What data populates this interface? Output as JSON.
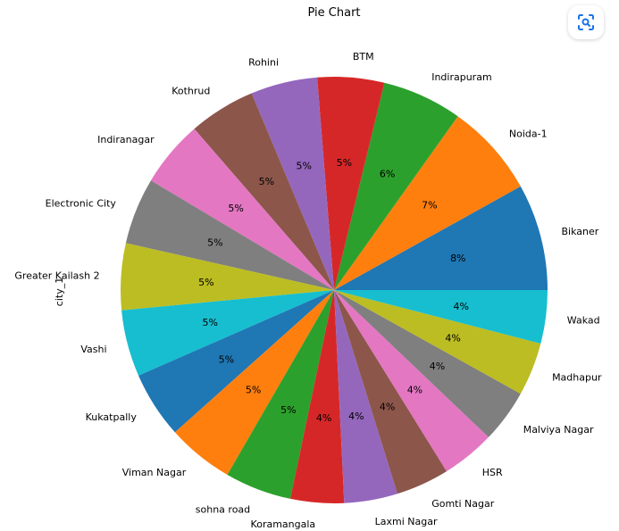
{
  "chart_data": {
    "type": "pie",
    "title": "Pie Chart",
    "ylabel": "city_1",
    "start_angle_deg": 0,
    "direction": "counterclockwise",
    "slices": [
      {
        "label": "Bikaner",
        "value": 8,
        "pct_label": "8%",
        "color": "#1f77b4"
      },
      {
        "label": "Noida-1",
        "value": 7,
        "pct_label": "7%",
        "color": "#ff7f0e"
      },
      {
        "label": "Indirapuram",
        "value": 6,
        "pct_label": "6%",
        "color": "#2ca02c"
      },
      {
        "label": "BTM",
        "value": 5,
        "pct_label": "5%",
        "color": "#d62728"
      },
      {
        "label": "Rohini",
        "value": 5,
        "pct_label": "5%",
        "color": "#9467bd"
      },
      {
        "label": "Kothrud",
        "value": 5,
        "pct_label": "5%",
        "color": "#8c564b"
      },
      {
        "label": "Indiranagar",
        "value": 5,
        "pct_label": "5%",
        "color": "#e377c2"
      },
      {
        "label": "Electronic City",
        "value": 5,
        "pct_label": "5%",
        "color": "#7f7f7f"
      },
      {
        "label": "Greater Kailash 2",
        "value": 5,
        "pct_label": "5%",
        "color": "#bcbd22"
      },
      {
        "label": "Vashi",
        "value": 5,
        "pct_label": "5%",
        "color": "#17becf"
      },
      {
        "label": "Kukatpally",
        "value": 5,
        "pct_label": "5%",
        "color": "#1f77b4"
      },
      {
        "label": "Viman Nagar",
        "value": 5,
        "pct_label": "5%",
        "color": "#ff7f0e"
      },
      {
        "label": "sohna road",
        "value": 5,
        "pct_label": "5%",
        "color": "#2ca02c"
      },
      {
        "label": "Koramangala",
        "value": 4,
        "pct_label": "4%",
        "color": "#d62728"
      },
      {
        "label": "Laxmi Nagar",
        "value": 4,
        "pct_label": "4%",
        "color": "#9467bd"
      },
      {
        "label": "Gomti Nagar",
        "value": 4,
        "pct_label": "4%",
        "color": "#8c564b"
      },
      {
        "label": "HSR",
        "value": 4,
        "pct_label": "4%",
        "color": "#e377c2"
      },
      {
        "label": "Malviya Nagar",
        "value": 4,
        "pct_label": "4%",
        "color": "#7f7f7f"
      },
      {
        "label": "Madhapur",
        "value": 4,
        "pct_label": "4%",
        "color": "#bcbd22"
      },
      {
        "label": "Wakad",
        "value": 4,
        "pct_label": "4%",
        "color": "#17becf"
      }
    ]
  },
  "toolbar": {
    "scan_icon": "scan-icon",
    "scan_icon_color": "#1a73e8"
  }
}
